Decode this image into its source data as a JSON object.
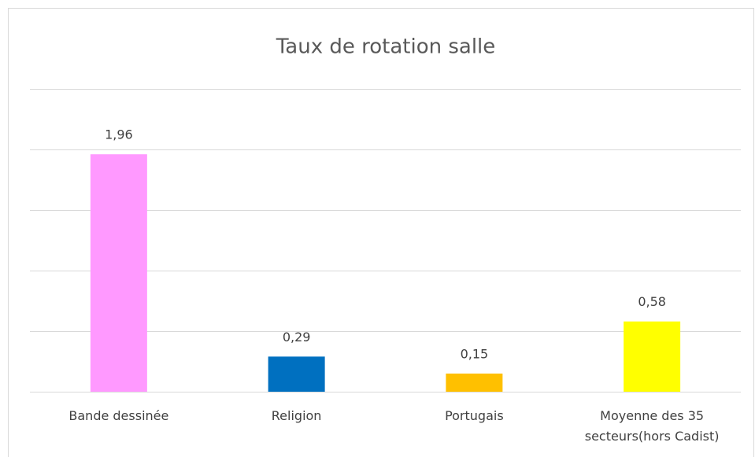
{
  "chart_data": {
    "type": "bar",
    "title": "Taux de rotation salle",
    "categories": [
      "Bande dessinée",
      "Religion",
      "Portugais",
      "Moyenne des 35 secteurs(hors Cadist)"
    ],
    "values": [
      1.96,
      0.29,
      0.15,
      0.58
    ],
    "value_labels": [
      "1,96",
      "0,29",
      "0,15",
      "0,58"
    ],
    "colors": [
      "#ff99ff",
      "#0070c0",
      "#ffc000",
      "#ffff00"
    ],
    "ylim": [
      0,
      2.5
    ],
    "yticks": [
      0,
      0.5,
      1,
      1.5,
      2,
      2.5
    ],
    "grid": true
  }
}
